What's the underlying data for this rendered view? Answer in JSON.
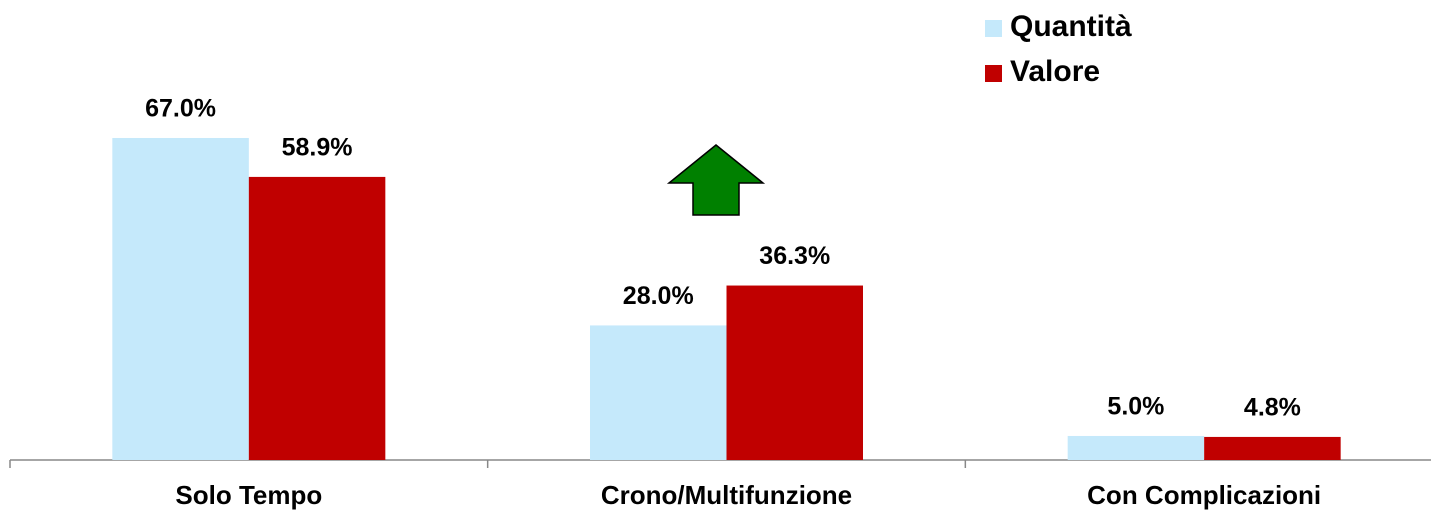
{
  "chart_data": {
    "type": "bar",
    "categories": [
      "Solo Tempo",
      "Crono/Multifunzione",
      "Con Complicazioni"
    ],
    "series": [
      {
        "name": "Quantità",
        "color": "#c5e9fb",
        "values": [
          67.0,
          28.0,
          5.0
        ],
        "value_labels": [
          "67.0%",
          "28.0%",
          "5.0%"
        ]
      },
      {
        "name": "Valore",
        "color": "#c00000",
        "values": [
          58.9,
          36.3,
          4.8
        ],
        "value_labels": [
          "58.9%",
          "36.3%",
          "4.8%"
        ]
      }
    ],
    "ylim": [
      0,
      80
    ],
    "legend": "top-right"
  }
}
